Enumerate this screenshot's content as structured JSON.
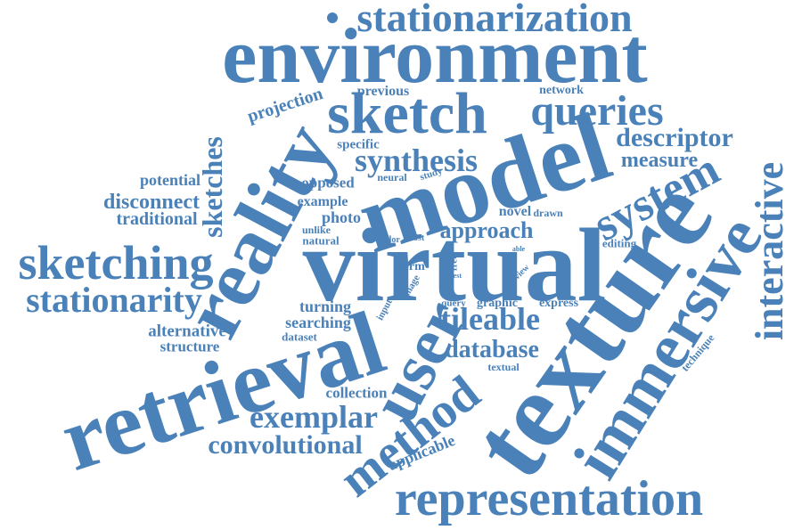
{
  "color": "#4a81b8",
  "words": [
    "stationarization",
    "environment",
    "sketch",
    "queries",
    "reality",
    "model",
    "virtual",
    "texture",
    "retrieval",
    "user",
    "immersive",
    "interactive",
    "system",
    "representation",
    "sketching",
    "stationarity",
    "sketches",
    "exemplar",
    "method",
    "convolutional",
    "tileable",
    "database",
    "synthesis",
    "descriptor",
    "measure",
    "projection",
    "previous",
    "network",
    "specific",
    "potential",
    "disconnect",
    "traditional",
    "opposed",
    "example",
    "photo",
    "neural",
    "study",
    "approach",
    "novel",
    "drawn",
    "unlike",
    "natural",
    "color",
    "most",
    "form",
    "input",
    "image",
    "free",
    "test",
    "view",
    "able",
    "editing",
    "turning",
    "searching",
    "dataset",
    "alternative",
    "structure",
    "collection",
    "query",
    "graphic",
    "express",
    "textual",
    "technique",
    "applicable",
    "tile"
  ]
}
